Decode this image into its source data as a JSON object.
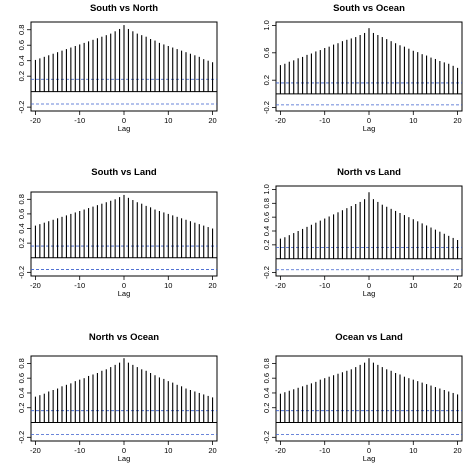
{
  "chart_data": [
    {
      "type": "bar",
      "title": "South vs North",
      "xlabel": "Lag",
      "ylabel": "",
      "xlim": [
        -21,
        21
      ],
      "ylim": [
        -0.25,
        0.9
      ],
      "xticks": [
        "-20",
        "-10",
        "0",
        "10",
        "20"
      ],
      "yticks": [
        "-0.2",
        "0.2",
        "0.4",
        "0.6",
        "0.8"
      ],
      "x": [
        -20,
        -19,
        -18,
        -17,
        -16,
        -15,
        -14,
        -13,
        -12,
        -11,
        -10,
        -9,
        -8,
        -7,
        -6,
        -5,
        -4,
        -3,
        -2,
        -1,
        0,
        1,
        2,
        3,
        4,
        5,
        6,
        7,
        8,
        9,
        10,
        11,
        12,
        13,
        14,
        15,
        16,
        17,
        18,
        19,
        20
      ],
      "values": [
        0.41,
        0.43,
        0.45,
        0.47,
        0.49,
        0.51,
        0.53,
        0.55,
        0.57,
        0.59,
        0.61,
        0.63,
        0.65,
        0.67,
        0.69,
        0.71,
        0.73,
        0.75,
        0.78,
        0.81,
        0.86,
        0.81,
        0.78,
        0.75,
        0.73,
        0.71,
        0.68,
        0.66,
        0.63,
        0.61,
        0.59,
        0.57,
        0.55,
        0.53,
        0.51,
        0.49,
        0.47,
        0.45,
        0.42,
        0.4,
        0.38
      ],
      "conf_upper": 0.16,
      "conf_lower": -0.16
    },
    {
      "type": "bar",
      "title": "South vs Ocean",
      "xlabel": "Lag",
      "ylabel": "",
      "xlim": [
        -21,
        21
      ],
      "ylim": [
        -0.25,
        1.05
      ],
      "xticks": [
        "-20",
        "-10",
        "0",
        "10",
        "20"
      ],
      "yticks": [
        "-0.2",
        "0.2",
        "0.6",
        "1.0"
      ],
      "x": [
        -20,
        -19,
        -18,
        -17,
        -16,
        -15,
        -14,
        -13,
        -12,
        -11,
        -10,
        -9,
        -8,
        -7,
        -6,
        -5,
        -4,
        -3,
        -2,
        -1,
        0,
        1,
        2,
        3,
        4,
        5,
        6,
        7,
        8,
        9,
        10,
        11,
        12,
        13,
        14,
        15,
        16,
        17,
        18,
        19,
        20
      ],
      "values": [
        0.42,
        0.44,
        0.47,
        0.49,
        0.52,
        0.54,
        0.57,
        0.59,
        0.62,
        0.64,
        0.67,
        0.69,
        0.72,
        0.74,
        0.77,
        0.79,
        0.81,
        0.83,
        0.86,
        0.89,
        0.96,
        0.89,
        0.86,
        0.83,
        0.8,
        0.77,
        0.74,
        0.71,
        0.69,
        0.66,
        0.63,
        0.61,
        0.58,
        0.56,
        0.53,
        0.51,
        0.48,
        0.46,
        0.44,
        0.41,
        0.38
      ],
      "conf_upper": 0.16,
      "conf_lower": -0.16
    },
    {
      "type": "bar",
      "title": "South vs Land",
      "xlabel": "Lag",
      "ylabel": "",
      "xlim": [
        -21,
        21
      ],
      "ylim": [
        -0.25,
        0.9
      ],
      "xticks": [
        "-20",
        "-10",
        "0",
        "10",
        "20"
      ],
      "yticks": [
        "-0.2",
        "0.2",
        "0.4",
        "0.6",
        "0.8"
      ],
      "x": [
        -20,
        -19,
        -18,
        -17,
        -16,
        -15,
        -14,
        -13,
        -12,
        -11,
        -10,
        -9,
        -8,
        -7,
        -6,
        -5,
        -4,
        -3,
        -2,
        -1,
        0,
        1,
        2,
        3,
        4,
        5,
        6,
        7,
        8,
        9,
        10,
        11,
        12,
        13,
        14,
        15,
        16,
        17,
        18,
        19,
        20
      ],
      "values": [
        0.44,
        0.46,
        0.48,
        0.5,
        0.52,
        0.54,
        0.56,
        0.58,
        0.6,
        0.62,
        0.64,
        0.66,
        0.68,
        0.7,
        0.72,
        0.74,
        0.76,
        0.78,
        0.8,
        0.83,
        0.86,
        0.82,
        0.79,
        0.76,
        0.74,
        0.71,
        0.69,
        0.66,
        0.64,
        0.62,
        0.6,
        0.58,
        0.56,
        0.54,
        0.52,
        0.5,
        0.48,
        0.46,
        0.44,
        0.42,
        0.4
      ],
      "conf_upper": 0.16,
      "conf_lower": -0.16
    },
    {
      "type": "bar",
      "title": "North vs Land",
      "xlabel": "Lag",
      "ylabel": "",
      "xlim": [
        -21,
        21
      ],
      "ylim": [
        -0.25,
        1.05
      ],
      "xticks": [
        "-20",
        "-10",
        "0",
        "10",
        "20"
      ],
      "yticks": [
        "-0.2",
        "0.2",
        "0.4",
        "0.6",
        "0.8",
        "1.0"
      ],
      "x": [
        -20,
        -19,
        -18,
        -17,
        -16,
        -15,
        -14,
        -13,
        -12,
        -11,
        -10,
        -9,
        -8,
        -7,
        -6,
        -5,
        -4,
        -3,
        -2,
        -1,
        0,
        1,
        2,
        3,
        4,
        5,
        6,
        7,
        8,
        9,
        10,
        11,
        12,
        13,
        14,
        15,
        16,
        17,
        18,
        19,
        20
      ],
      "values": [
        0.29,
        0.31,
        0.34,
        0.37,
        0.4,
        0.43,
        0.46,
        0.49,
        0.52,
        0.55,
        0.58,
        0.61,
        0.64,
        0.67,
        0.7,
        0.73,
        0.76,
        0.79,
        0.82,
        0.86,
        0.96,
        0.86,
        0.82,
        0.78,
        0.75,
        0.72,
        0.69,
        0.66,
        0.63,
        0.6,
        0.57,
        0.54,
        0.51,
        0.48,
        0.45,
        0.42,
        0.39,
        0.36,
        0.33,
        0.3,
        0.27
      ],
      "conf_upper": 0.16,
      "conf_lower": -0.16
    },
    {
      "type": "bar",
      "title": "North vs Ocean",
      "xlabel": "Lag",
      "ylabel": "",
      "xlim": [
        -21,
        21
      ],
      "ylim": [
        -0.25,
        0.9
      ],
      "xticks": [
        "-20",
        "-10",
        "0",
        "10",
        "20"
      ],
      "yticks": [
        "-0.2",
        "0.2",
        "0.4",
        "0.6",
        "0.8"
      ],
      "x": [
        -20,
        -19,
        -18,
        -17,
        -16,
        -15,
        -14,
        -13,
        -12,
        -11,
        -10,
        -9,
        -8,
        -7,
        -6,
        -5,
        -4,
        -3,
        -2,
        -1,
        0,
        1,
        2,
        3,
        4,
        5,
        6,
        7,
        8,
        9,
        10,
        11,
        12,
        13,
        14,
        15,
        16,
        17,
        18,
        19,
        20
      ],
      "values": [
        0.35,
        0.37,
        0.39,
        0.42,
        0.44,
        0.46,
        0.49,
        0.51,
        0.53,
        0.56,
        0.58,
        0.6,
        0.63,
        0.65,
        0.67,
        0.7,
        0.72,
        0.75,
        0.78,
        0.81,
        0.87,
        0.81,
        0.78,
        0.75,
        0.72,
        0.7,
        0.67,
        0.64,
        0.61,
        0.59,
        0.56,
        0.54,
        0.51,
        0.49,
        0.46,
        0.44,
        0.42,
        0.4,
        0.38,
        0.36,
        0.34
      ],
      "conf_upper": 0.16,
      "conf_lower": -0.16
    },
    {
      "type": "bar",
      "title": "Ocean vs Land",
      "xlabel": "Lag",
      "ylabel": "",
      "xlim": [
        -21,
        21
      ],
      "ylim": [
        -0.25,
        0.9
      ],
      "xticks": [
        "-20",
        "-10",
        "0",
        "10",
        "20"
      ],
      "yticks": [
        "-0.2",
        "0.2",
        "0.4",
        "0.6",
        "0.8"
      ],
      "x": [
        -20,
        -19,
        -18,
        -17,
        -16,
        -15,
        -14,
        -13,
        -12,
        -11,
        -10,
        -9,
        -8,
        -7,
        -6,
        -5,
        -4,
        -3,
        -2,
        -1,
        0,
        1,
        2,
        3,
        4,
        5,
        6,
        7,
        8,
        9,
        10,
        11,
        12,
        13,
        14,
        15,
        16,
        17,
        18,
        19,
        20
      ],
      "values": [
        0.39,
        0.41,
        0.43,
        0.45,
        0.47,
        0.49,
        0.51,
        0.53,
        0.55,
        0.58,
        0.6,
        0.62,
        0.64,
        0.66,
        0.68,
        0.7,
        0.72,
        0.75,
        0.78,
        0.81,
        0.87,
        0.81,
        0.78,
        0.75,
        0.72,
        0.7,
        0.67,
        0.65,
        0.62,
        0.6,
        0.58,
        0.56,
        0.54,
        0.52,
        0.5,
        0.48,
        0.46,
        0.44,
        0.42,
        0.4,
        0.38
      ],
      "conf_upper": 0.16,
      "conf_lower": -0.16
    }
  ],
  "colors": {
    "spike": "#000000",
    "confidence_band": "#3a5fcd",
    "frame": "#000000"
  }
}
